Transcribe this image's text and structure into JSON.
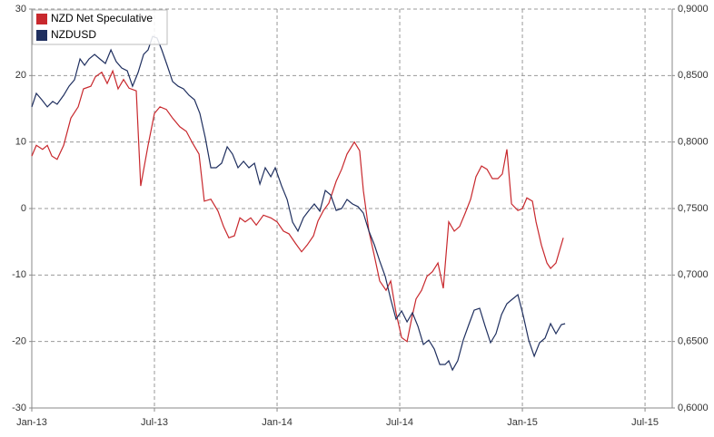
{
  "chart_data": {
    "type": "line",
    "xlim": [
      0,
      31.33
    ],
    "xticks": [
      {
        "value": 0,
        "label": "Jan-13"
      },
      {
        "value": 6,
        "label": "Jul-13"
      },
      {
        "value": 12,
        "label": "Jan-14"
      },
      {
        "value": 18,
        "label": "Jul-14"
      },
      {
        "value": 24,
        "label": "Jan-15"
      },
      {
        "value": 30,
        "label": "Jul-15"
      }
    ],
    "ylim": [
      -30,
      30
    ],
    "yticks": [
      -30,
      -20,
      -10,
      0,
      10,
      20,
      30
    ],
    "y2lim": [
      0.6,
      0.9
    ],
    "y2ticks": [
      {
        "value": 0.6,
        "label": "0,6000"
      },
      {
        "value": 0.65,
        "label": "0,6500"
      },
      {
        "value": 0.7,
        "label": "0,7000"
      },
      {
        "value": 0.75,
        "label": "0,7500"
      },
      {
        "value": 0.8,
        "label": "0,8000"
      },
      {
        "value": 0.85,
        "label": "0,8500"
      },
      {
        "value": 0.9,
        "label": "0,9000"
      }
    ],
    "grid": true,
    "legend": "top-left",
    "series": [
      {
        "name": "NZD Net Speculative",
        "color": "#c8282d",
        "axis": "y",
        "x": [
          0,
          0.22,
          0.53,
          0.76,
          0.98,
          1.24,
          1.56,
          1.91,
          2.27,
          2.53,
          2.89,
          3.11,
          3.42,
          3.69,
          3.96,
          4.22,
          4.49,
          4.76,
          5.11,
          5.33,
          5.69,
          6,
          6.27,
          6.58,
          6.89,
          7.24,
          7.56,
          7.87,
          8.18,
          8.44,
          8.76,
          9.11,
          9.38,
          9.64,
          9.91,
          10.18,
          10.44,
          10.71,
          10.98,
          11.33,
          11.69,
          12,
          12.31,
          12.58,
          12.89,
          13.2,
          13.47,
          13.78,
          14,
          14.27,
          14.53,
          14.89,
          15.16,
          15.42,
          15.78,
          16.04,
          16.22,
          16.49,
          16.76,
          17.02,
          17.33,
          17.56,
          17.82,
          18.09,
          18.36,
          18.58,
          18.8,
          19.07,
          19.33,
          19.6,
          19.87,
          20.13,
          20.4,
          20.67,
          20.93,
          21.2,
          21.47,
          21.73,
          22,
          22.27,
          22.53,
          22.8,
          23.02,
          23.24,
          23.47,
          23.78,
          24,
          24.22,
          24.49,
          24.67,
          24.93,
          25.2,
          25.38,
          25.64,
          26
        ],
        "values": [
          7.9,
          9.5,
          8.9,
          9.5,
          7.9,
          7.4,
          9.5,
          13.6,
          15.3,
          18,
          18.4,
          19.8,
          20.5,
          18.8,
          20.7,
          18,
          19.4,
          18.1,
          17.7,
          3.4,
          9.5,
          14.3,
          15.3,
          14.9,
          13.6,
          12.3,
          11.6,
          9.8,
          8.2,
          1.1,
          1.4,
          -0.4,
          -2.7,
          -4.4,
          -4.1,
          -1.4,
          -2,
          -1.4,
          -2.5,
          -1,
          -1.4,
          -2,
          -3.4,
          -3.8,
          -5.2,
          -6.5,
          -5.5,
          -4.1,
          -1.9,
          -0.3,
          0.8,
          4.1,
          5.9,
          8.2,
          10,
          8.7,
          2.7,
          -3.4,
          -7.1,
          -10.9,
          -12.3,
          -10.9,
          -15.7,
          -19.4,
          -20,
          -16.6,
          -13.6,
          -12.3,
          -10.2,
          -9.5,
          -8.2,
          -12,
          -2,
          -3.4,
          -2.7,
          -0.7,
          1.4,
          4.8,
          6.4,
          5.9,
          4.5,
          4.5,
          5.2,
          8.9,
          0.7,
          -0.3,
          0,
          1.6,
          1.1,
          -2,
          -5.5,
          -8.2,
          -9,
          -8.2,
          -4.4
        ]
      },
      {
        "name": "NZDUSD",
        "color": "#1f2f5f",
        "axis": "y2",
        "x": [
          0,
          0.22,
          0.49,
          0.76,
          1.02,
          1.24,
          1.56,
          1.82,
          2.09,
          2.36,
          2.58,
          2.8,
          3.07,
          3.33,
          3.6,
          3.87,
          4.13,
          4.4,
          4.67,
          4.93,
          5.2,
          5.47,
          5.69,
          5.91,
          6.13,
          6.36,
          6.62,
          6.89,
          7.16,
          7.42,
          7.69,
          7.96,
          8.22,
          8.49,
          8.76,
          9.02,
          9.29,
          9.56,
          9.82,
          10.09,
          10.36,
          10.62,
          10.89,
          11.16,
          11.42,
          11.69,
          11.91,
          12.22,
          12.49,
          12.76,
          13.02,
          13.29,
          13.56,
          13.82,
          14.09,
          14.36,
          14.62,
          14.89,
          15.16,
          15.42,
          15.69,
          15.96,
          16.22,
          16.49,
          16.76,
          17.02,
          17.29,
          17.56,
          17.82,
          18.09,
          18.36,
          18.62,
          18.89,
          19.16,
          19.42,
          19.69,
          19.96,
          20.22,
          20.4,
          20.58,
          20.84,
          21.11,
          21.38,
          21.64,
          21.91,
          22.18,
          22.44,
          22.71,
          22.98,
          23.24,
          23.51,
          23.78,
          24.04,
          24.31,
          24.58,
          24.84,
          25.11,
          25.38,
          25.64,
          25.91,
          26.09
        ],
        "values": [
          0.8264,
          0.8366,
          0.8318,
          0.8264,
          0.8305,
          0.8284,
          0.8352,
          0.842,
          0.8468,
          0.8625,
          0.8577,
          0.8625,
          0.8659,
          0.8625,
          0.8591,
          0.8693,
          0.8605,
          0.8557,
          0.8536,
          0.842,
          0.8523,
          0.8659,
          0.8693,
          0.8795,
          0.8782,
          0.8693,
          0.8577,
          0.8455,
          0.842,
          0.84,
          0.8352,
          0.8318,
          0.8216,
          0.8032,
          0.7807,
          0.7807,
          0.7841,
          0.7964,
          0.7909,
          0.7807,
          0.7855,
          0.7807,
          0.7841,
          0.7684,
          0.7807,
          0.7739,
          0.7807,
          0.767,
          0.7568,
          0.7398,
          0.733,
          0.7432,
          0.7486,
          0.7534,
          0.748,
          0.7636,
          0.7602,
          0.7486,
          0.75,
          0.7568,
          0.7534,
          0.7514,
          0.7466,
          0.733,
          0.7227,
          0.7105,
          0.6989,
          0.6818,
          0.6668,
          0.673,
          0.6648,
          0.6716,
          0.6614,
          0.6477,
          0.6511,
          0.6443,
          0.6327,
          0.6327,
          0.6355,
          0.6286,
          0.6355,
          0.6511,
          0.6627,
          0.6736,
          0.675,
          0.6614,
          0.6491,
          0.6559,
          0.6702,
          0.6784,
          0.6818,
          0.6852,
          0.6695,
          0.6511,
          0.6389,
          0.6491,
          0.6525,
          0.6634,
          0.6559,
          0.6627,
          0.6634
        ]
      }
    ]
  }
}
